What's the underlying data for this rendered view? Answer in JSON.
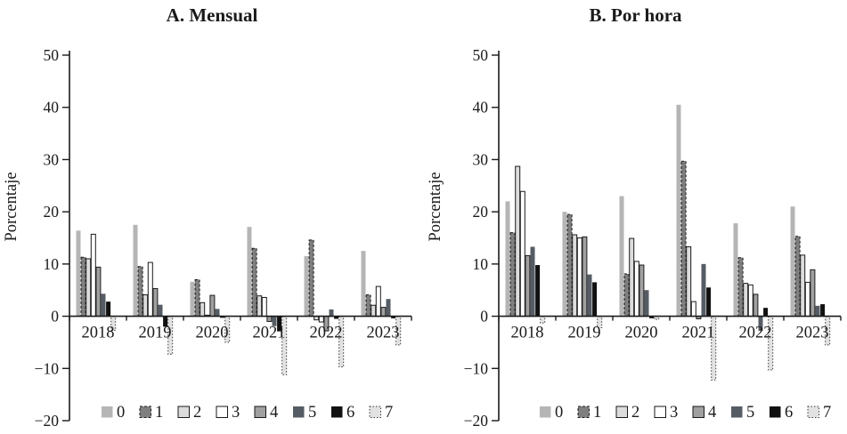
{
  "page": {
    "background": "#ffffff"
  },
  "shared": {
    "ylabel": "Porcentaje",
    "y_tick_labels": [
      "50",
      "40",
      "30",
      "20",
      "10",
      "0",
      "−10",
      "−20"
    ],
    "years": [
      "2018",
      "2019",
      "2020",
      "2021",
      "2022",
      "2023"
    ],
    "legend_labels": [
      "0",
      "1",
      "2",
      "3",
      "4",
      "5",
      "6",
      "7"
    ]
  },
  "series_styles": [
    {
      "name": "0",
      "fill": "#b5b5b5",
      "stroke": "none",
      "dash": ""
    },
    {
      "name": "1",
      "fill": "#7f7f7f",
      "stroke": "#1a1a1a",
      "dash": "3,2"
    },
    {
      "name": "2",
      "fill": "#dcdcdc",
      "stroke": "#1a1a1a",
      "dash": ""
    },
    {
      "name": "3",
      "fill": "#ffffff",
      "stroke": "#1a1a1a",
      "dash": ""
    },
    {
      "name": "4",
      "fill": "#a0a0a0",
      "stroke": "#1a1a1a",
      "dash": ""
    },
    {
      "name": "5",
      "fill": "#565c64",
      "stroke": "none",
      "dash": ""
    },
    {
      "name": "6",
      "fill": "#111111",
      "stroke": "none",
      "dash": ""
    },
    {
      "name": "7",
      "fill": "#e2e2e2",
      "stroke": "#3a3a3a",
      "dash": "1.5,2"
    }
  ],
  "chart_data": [
    {
      "type": "bar",
      "title": "A. Mensual",
      "xlabel": "",
      "ylabel": "Porcentaje",
      "ylim": [
        -20,
        50
      ],
      "ystep": 10,
      "grid": false,
      "legend_position": "bottom",
      "categories": [
        "2018",
        "2019",
        "2020",
        "2021",
        "2022",
        "2023"
      ],
      "series": [
        {
          "name": "0",
          "values": [
            16.4,
            17.5,
            6.6,
            17.1,
            11.5,
            12.5
          ]
        },
        {
          "name": "1",
          "values": [
            11.3,
            9.5,
            7.0,
            13.0,
            14.6,
            4.1
          ]
        },
        {
          "name": "2",
          "values": [
            11.0,
            4.1,
            2.6,
            3.9,
            -0.7,
            2.1
          ]
        },
        {
          "name": "3",
          "values": [
            15.7,
            10.3,
            0.2,
            3.6,
            -1.1,
            5.7
          ]
        },
        {
          "name": "4",
          "values": [
            9.4,
            5.3,
            4.0,
            -1.0,
            -2.8,
            1.7
          ]
        },
        {
          "name": "5",
          "values": [
            4.3,
            2.2,
            1.4,
            -1.9,
            1.3,
            3.3
          ]
        },
        {
          "name": "6",
          "values": [
            2.8,
            -2.0,
            -0.3,
            -2.9,
            -0.5,
            -0.4
          ]
        },
        {
          "name": "7",
          "values": [
            -2.7,
            -7.3,
            -5.0,
            -11.2,
            -9.7,
            -5.5
          ]
        }
      ]
    },
    {
      "type": "bar",
      "title": "B. Por hora",
      "xlabel": "",
      "ylabel": "Porcentaje",
      "ylim": [
        -20,
        50
      ],
      "ystep": 10,
      "grid": false,
      "legend_position": "bottom",
      "categories": [
        "2018",
        "2019",
        "2020",
        "2021",
        "2022",
        "2023"
      ],
      "series": [
        {
          "name": "0",
          "values": [
            22.0,
            20.0,
            23.0,
            40.5,
            17.8,
            21.0
          ]
        },
        {
          "name": "1",
          "values": [
            16.0,
            19.5,
            8.1,
            29.7,
            11.2,
            15.3
          ]
        },
        {
          "name": "2",
          "values": [
            28.7,
            15.6,
            14.9,
            13.3,
            6.3,
            11.7
          ]
        },
        {
          "name": "3",
          "values": [
            23.9,
            15.0,
            10.5,
            2.8,
            6.0,
            6.5
          ]
        },
        {
          "name": "4",
          "values": [
            11.6,
            15.2,
            9.8,
            -0.5,
            4.2,
            8.9
          ]
        },
        {
          "name": "5",
          "values": [
            13.3,
            8.0,
            5.0,
            10.0,
            -2.8,
            2.0
          ]
        },
        {
          "name": "6",
          "values": [
            9.8,
            6.5,
            -0.4,
            5.5,
            1.6,
            2.3
          ]
        },
        {
          "name": "7",
          "values": [
            -1.3,
            -2.2,
            -0.6,
            -12.2,
            -10.3,
            -5.5
          ]
        }
      ]
    }
  ]
}
